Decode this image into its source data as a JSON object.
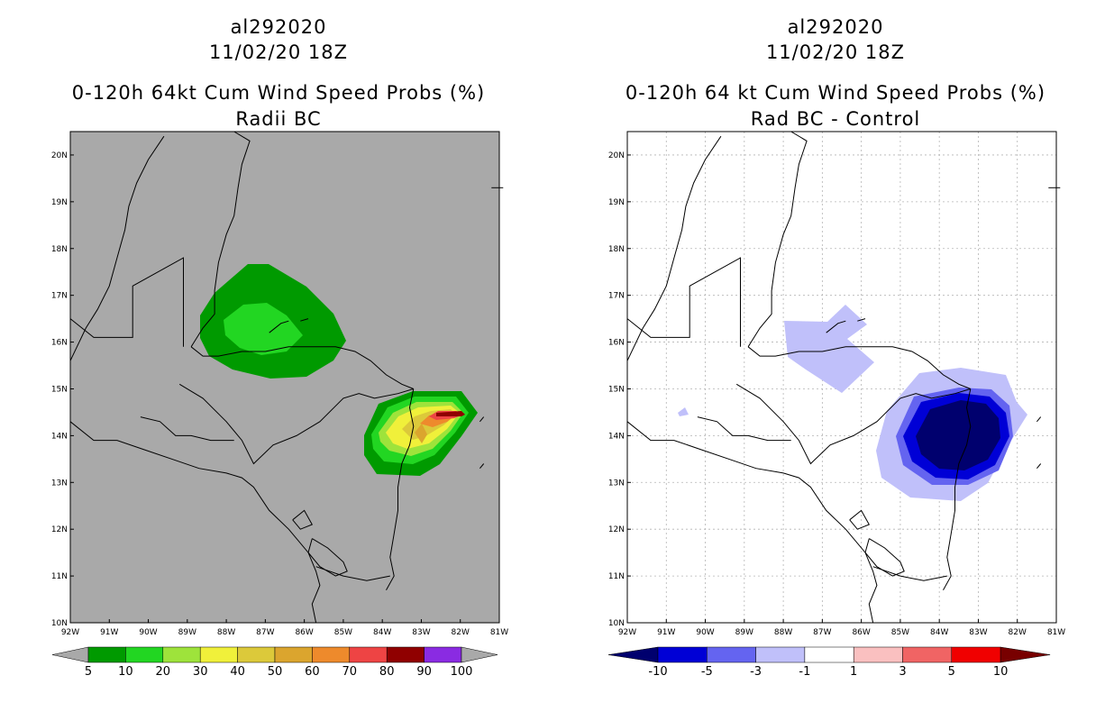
{
  "panels": [
    {
      "storm_id": "al292020",
      "datetime": "11/02/20 18Z",
      "product": "0-120h 64kt Cum Wind Speed Probs (%)",
      "subtitle": "Radii BC",
      "background": "#a9a9a9",
      "lon_labels": [
        "92W",
        "91W",
        "90W",
        "89W",
        "88W",
        "87W",
        "86W",
        "85W",
        "84W",
        "83W",
        "82W",
        "81W"
      ],
      "lat_labels": [
        "10N",
        "11N",
        "12N",
        "13N",
        "14N",
        "15N",
        "16N",
        "17N",
        "18N",
        "19N",
        "20N"
      ],
      "colorbar": {
        "colors": [
          "#009a00",
          "#22d622",
          "#9ee33b",
          "#f0f03a",
          "#dcc93a",
          "#dba52e",
          "#ee8a2c",
          "#ee4444",
          "#900000",
          "#8a2be2"
        ],
        "labels": [
          "5",
          "10",
          "20",
          "30",
          "40",
          "50",
          "60",
          "70",
          "80",
          "90",
          "100"
        ],
        "end_color": "#a9a9a9"
      }
    },
    {
      "storm_id": "al292020",
      "datetime": "11/02/20 18Z",
      "product": "0-120h 64 kt Cum Wind Speed Probs (%)",
      "subtitle": "Rad BC - Control",
      "background": "#ffffff",
      "lon_labels": [
        "92W",
        "91W",
        "90W",
        "89W",
        "88W",
        "87W",
        "86W",
        "85W",
        "84W",
        "83W",
        "82W",
        "81W"
      ],
      "lat_labels": [
        "10N",
        "11N",
        "12N",
        "13N",
        "14N",
        "15N",
        "16N",
        "17N",
        "18N",
        "19N",
        "20N"
      ],
      "colorbar": {
        "colors": [
          "#0000d6",
          "#6464f0",
          "#c0c0fa",
          "#ffffff",
          "#fac0c0",
          "#f06464",
          "#f00000"
        ],
        "labels": [
          "-10",
          "-5",
          "-3",
          "-1",
          "1",
          "3",
          "5",
          "10"
        ],
        "end_left": "#00006e",
        "end_right": "#780000"
      }
    }
  ]
}
